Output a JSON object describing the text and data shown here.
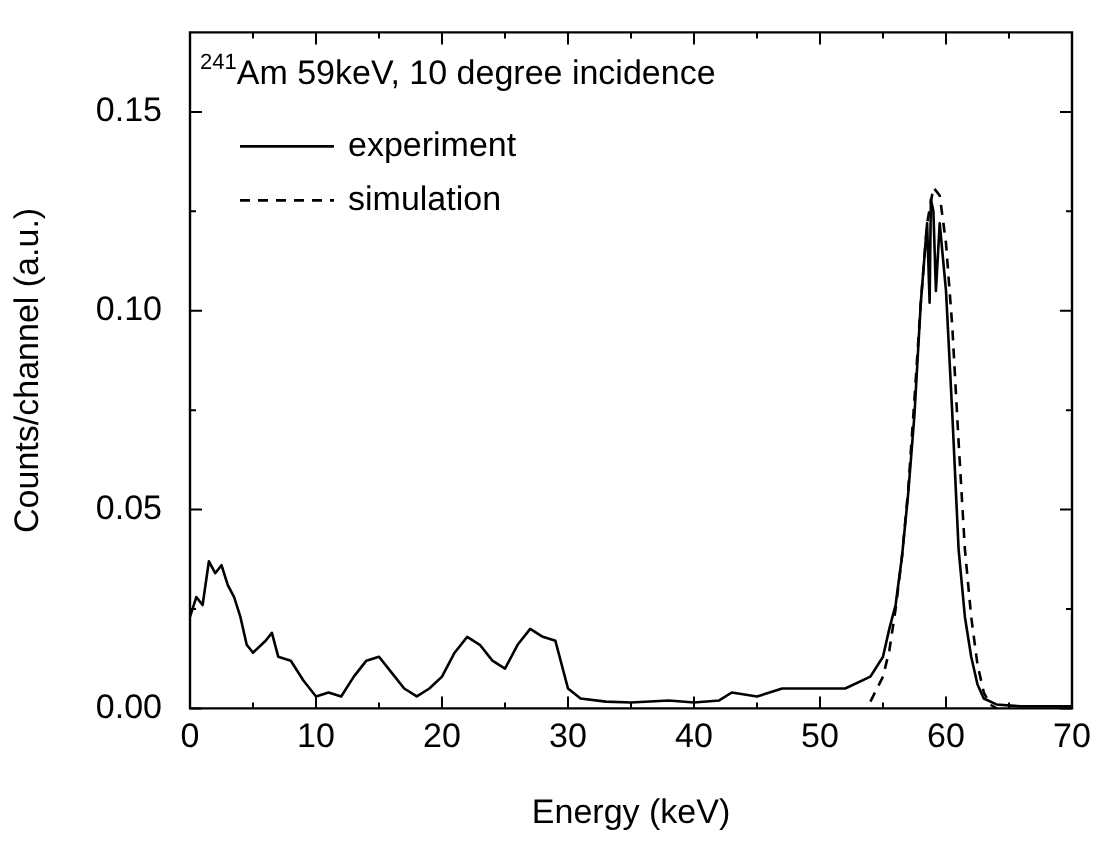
{
  "chart_data": {
    "type": "line",
    "xlabel": "Energy (keV)",
    "ylabel": "Counts/channel (a.u.)",
    "annotations": [
      "$^{241}$Am 59keV, 10 degree incidence"
    ],
    "xlim": [
      0,
      70
    ],
    "ylim": [
      0,
      0.17
    ],
    "xticks": [
      0,
      {
        "value": 5,
        "label": null
      },
      10,
      {
        "value": 15,
        "label": null
      },
      20,
      {
        "value": 25,
        "label": null
      },
      30,
      {
        "value": 35,
        "label": null
      },
      40,
      {
        "value": 45,
        "label": null
      },
      50,
      {
        "value": 55,
        "label": null
      },
      60,
      {
        "value": 65,
        "label": null
      },
      70
    ],
    "yticks": [
      {
        "value": 0,
        "label": "0.00"
      },
      {
        "value": 0.025,
        "label": null
      },
      {
        "value": 0.05,
        "label": "0.05"
      },
      {
        "value": 0.075,
        "label": null
      },
      {
        "value": 0.1,
        "label": "0.10"
      },
      {
        "value": 0.125,
        "label": null
      },
      {
        "value": 0.15,
        "label": "0.15"
      }
    ],
    "grid": false,
    "legend": "top left",
    "marker": "none",
    "series": [
      {
        "name": "experiment",
        "color": "#000000",
        "line_style": "solid",
        "x": [
          0,
          0.5,
          1,
          1.5,
          2,
          2.5,
          3,
          3.5,
          4,
          4.5,
          5,
          6,
          6.5,
          7,
          8,
          9,
          10,
          11,
          12,
          13,
          14,
          15,
          16,
          17,
          18,
          19,
          20,
          21,
          22,
          23,
          24,
          25,
          26,
          27,
          28,
          29,
          30,
          31,
          33,
          35,
          38,
          40,
          42,
          43,
          45,
          47,
          50,
          52,
          54,
          55,
          55.5,
          56,
          56.5,
          57,
          57.5,
          58,
          58.5,
          58.7,
          58.8,
          59,
          59.2,
          59.5,
          60,
          60.5,
          61,
          61.5,
          62,
          62.5,
          63,
          64,
          66,
          70
        ],
        "values": [
          0.023,
          0.028,
          0.026,
          0.037,
          0.034,
          0.036,
          0.031,
          0.028,
          0.023,
          0.016,
          0.014,
          0.017,
          0.019,
          0.013,
          0.012,
          0.007,
          0.003,
          0.004,
          0.003,
          0.008,
          0.012,
          0.013,
          0.009,
          0.005,
          0.003,
          0.005,
          0.008,
          0.014,
          0.018,
          0.016,
          0.012,
          0.01,
          0.016,
          0.02,
          0.018,
          0.017,
          0.005,
          0.0025,
          0.0017,
          0.0015,
          0.002,
          0.0015,
          0.002,
          0.004,
          0.003,
          0.005,
          0.005,
          0.005,
          0.008,
          0.013,
          0.02,
          0.026,
          0.038,
          0.054,
          0.074,
          0.102,
          0.122,
          0.102,
          0.128,
          0.125,
          0.105,
          0.122,
          0.105,
          0.074,
          0.04,
          0.023,
          0.013,
          0.006,
          0.0025,
          0.001,
          0.0005,
          0.0005
        ]
      },
      {
        "name": "simulation",
        "color": "#000000",
        "line_style": "dashed",
        "x": [
          54,
          55,
          55.5,
          56,
          56.5,
          57,
          57.5,
          58,
          58.5,
          59,
          59.5,
          60,
          60.5,
          61,
          61.5,
          62,
          62.5,
          63,
          63.5,
          64
        ],
        "values": [
          0.0017,
          0.008,
          0.0145,
          0.025,
          0.038,
          0.055,
          0.078,
          0.102,
          0.122,
          0.131,
          0.129,
          0.117,
          0.096,
          0.067,
          0.04,
          0.023,
          0.011,
          0.004,
          0.001,
          0
        ]
      }
    ]
  }
}
